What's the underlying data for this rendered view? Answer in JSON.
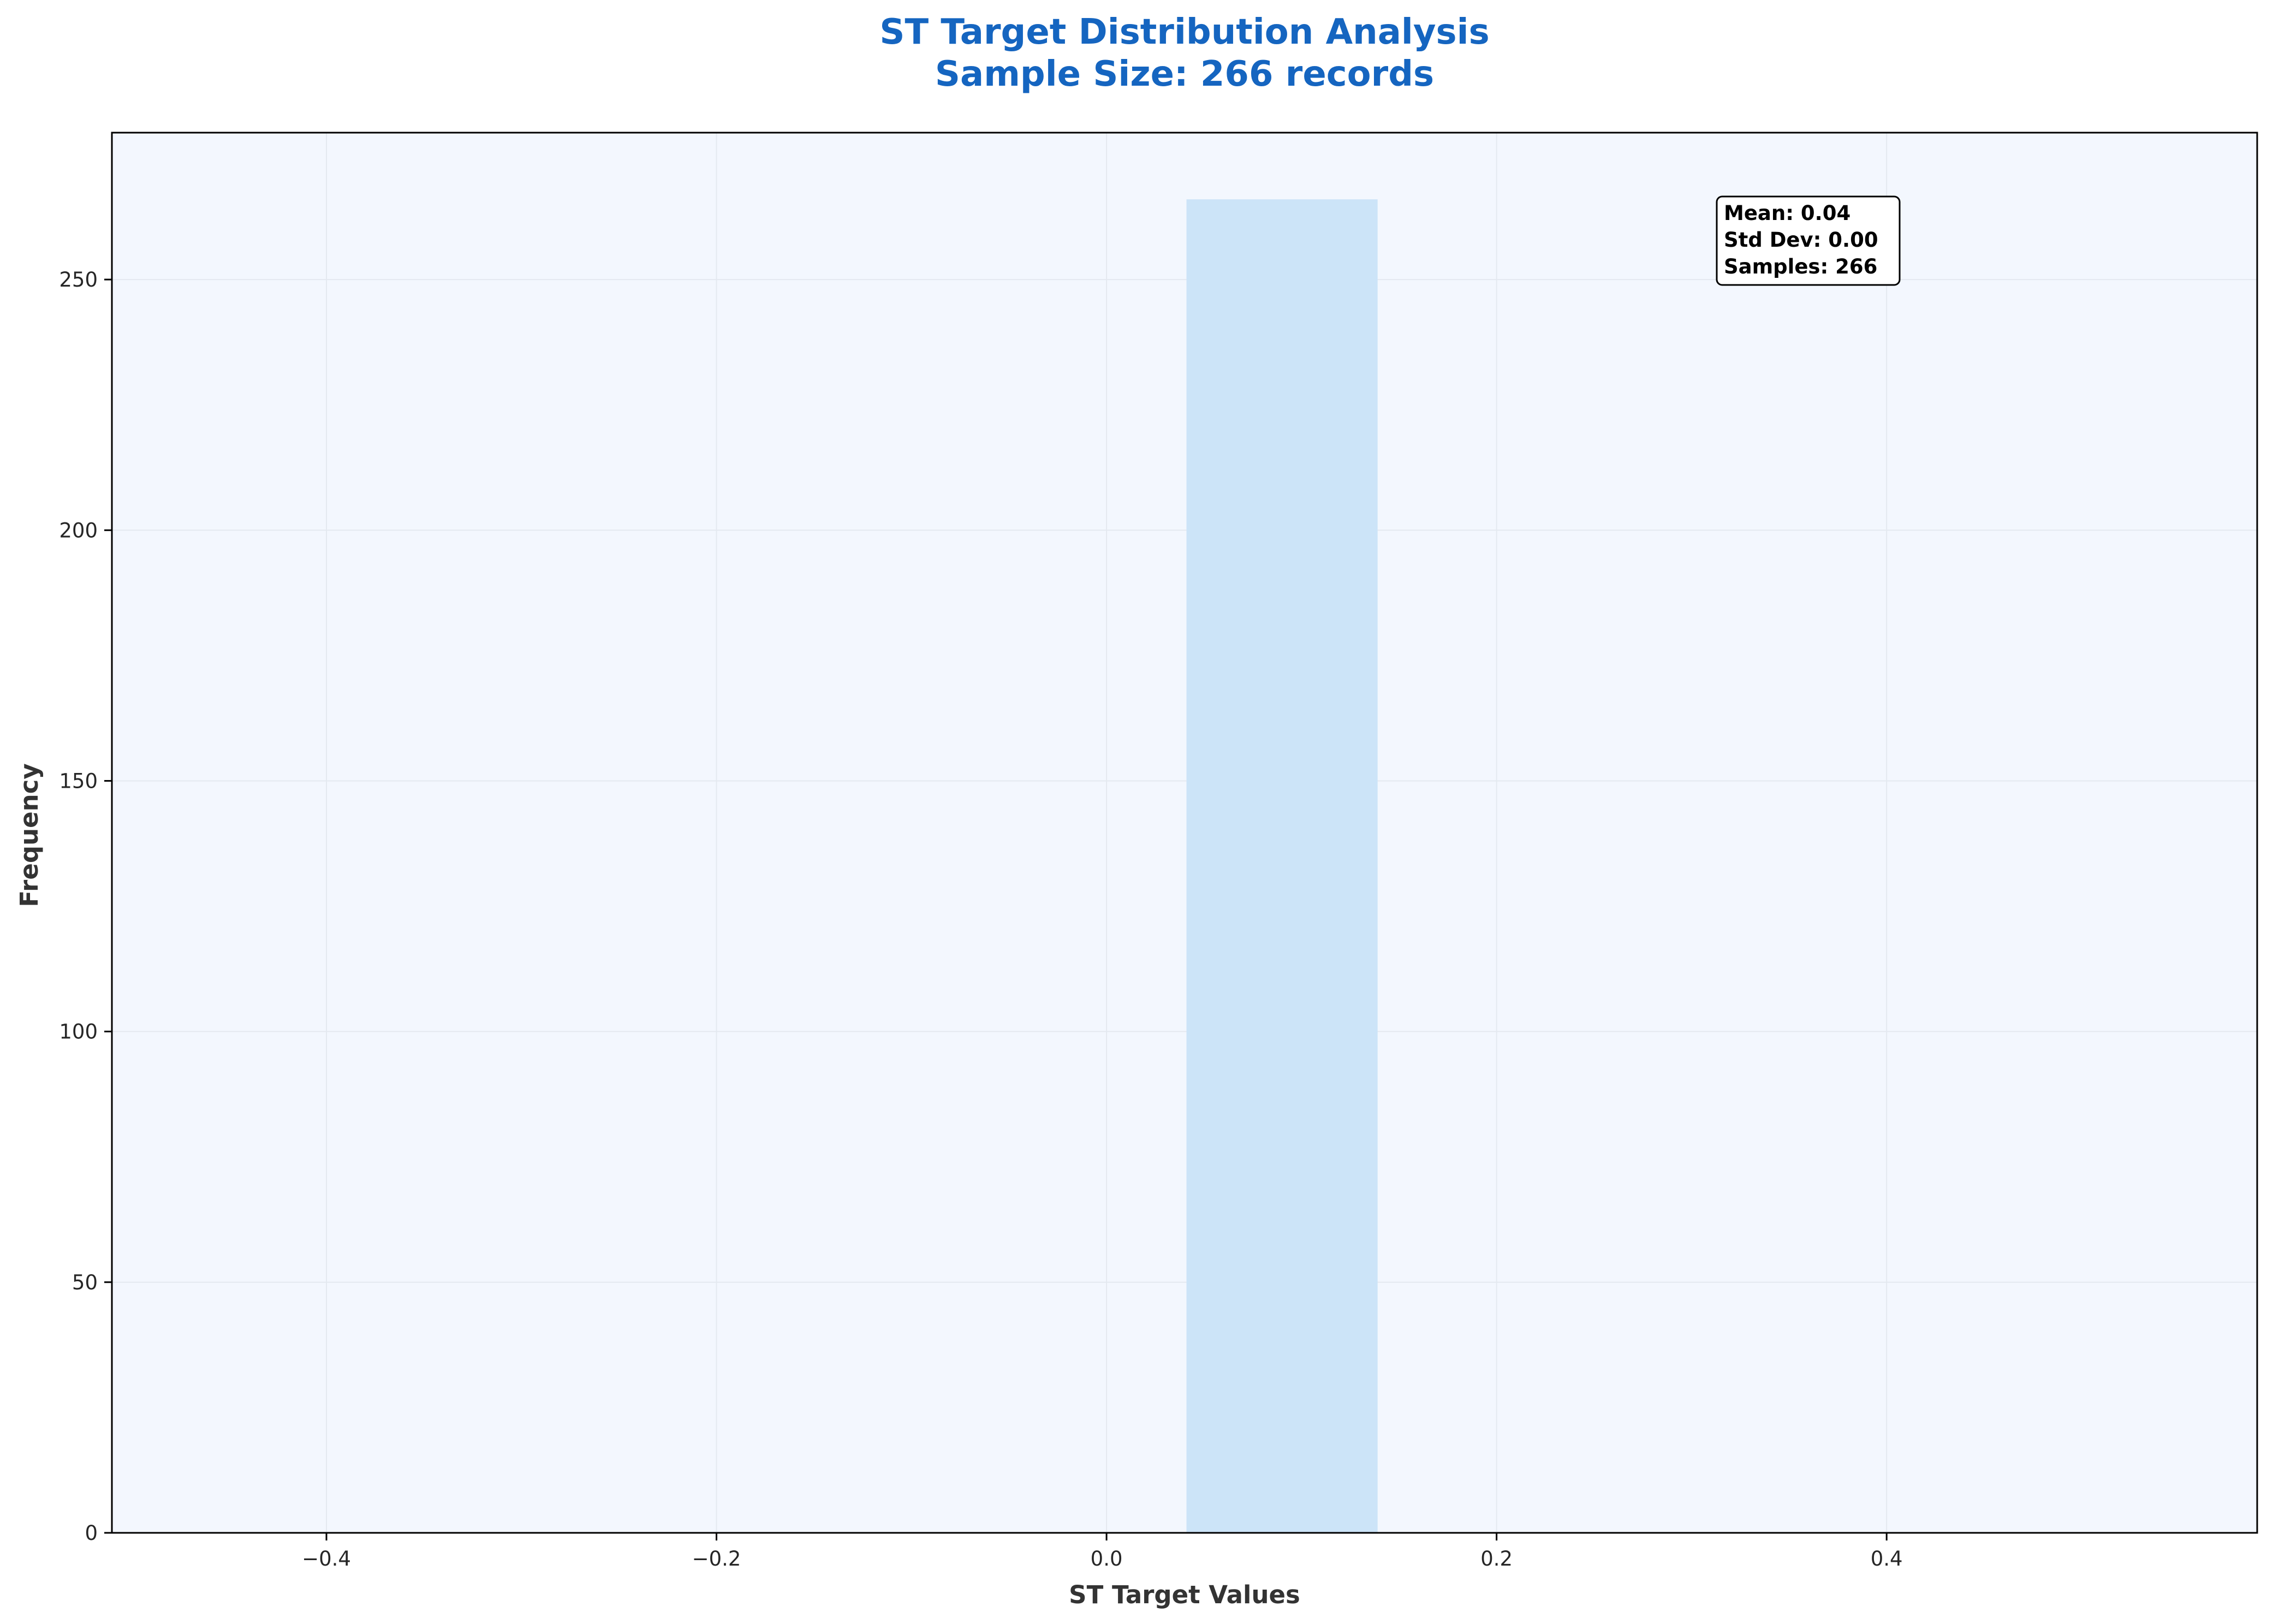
{
  "chart_data": {
    "type": "bar",
    "title": "ST Target Distribution Analysis",
    "subtitle": "Sample Size: 266 records",
    "xlabel": "ST Target Values",
    "ylabel": "Frequency",
    "xlim": [
      -0.51,
      0.59
    ],
    "ylim": [
      0,
      279.3
    ],
    "xticks": [
      -0.4,
      -0.2,
      0.0,
      0.2,
      0.4
    ],
    "xtick_labels": [
      "−0.4",
      "−0.2",
      "0.0",
      "0.2",
      "0.4"
    ],
    "yticks": [
      0,
      50,
      100,
      150,
      200,
      250
    ],
    "ytick_labels": [
      "0",
      "50",
      "100",
      "150",
      "200",
      "250"
    ],
    "bins": [
      {
        "x0": 0.041,
        "x1": 0.139,
        "count": 266
      }
    ],
    "grid": true,
    "stats_box": {
      "placement": "top-right",
      "lines": [
        "Mean: 0.04",
        "Std Dev: 0.00",
        "Samples: 266"
      ]
    },
    "colors": {
      "title": "#1565c0",
      "plot_background": "#f3f7fe",
      "bar": "#cce4f8",
      "grid": "#e4e9f0",
      "axis": "#000000"
    }
  }
}
